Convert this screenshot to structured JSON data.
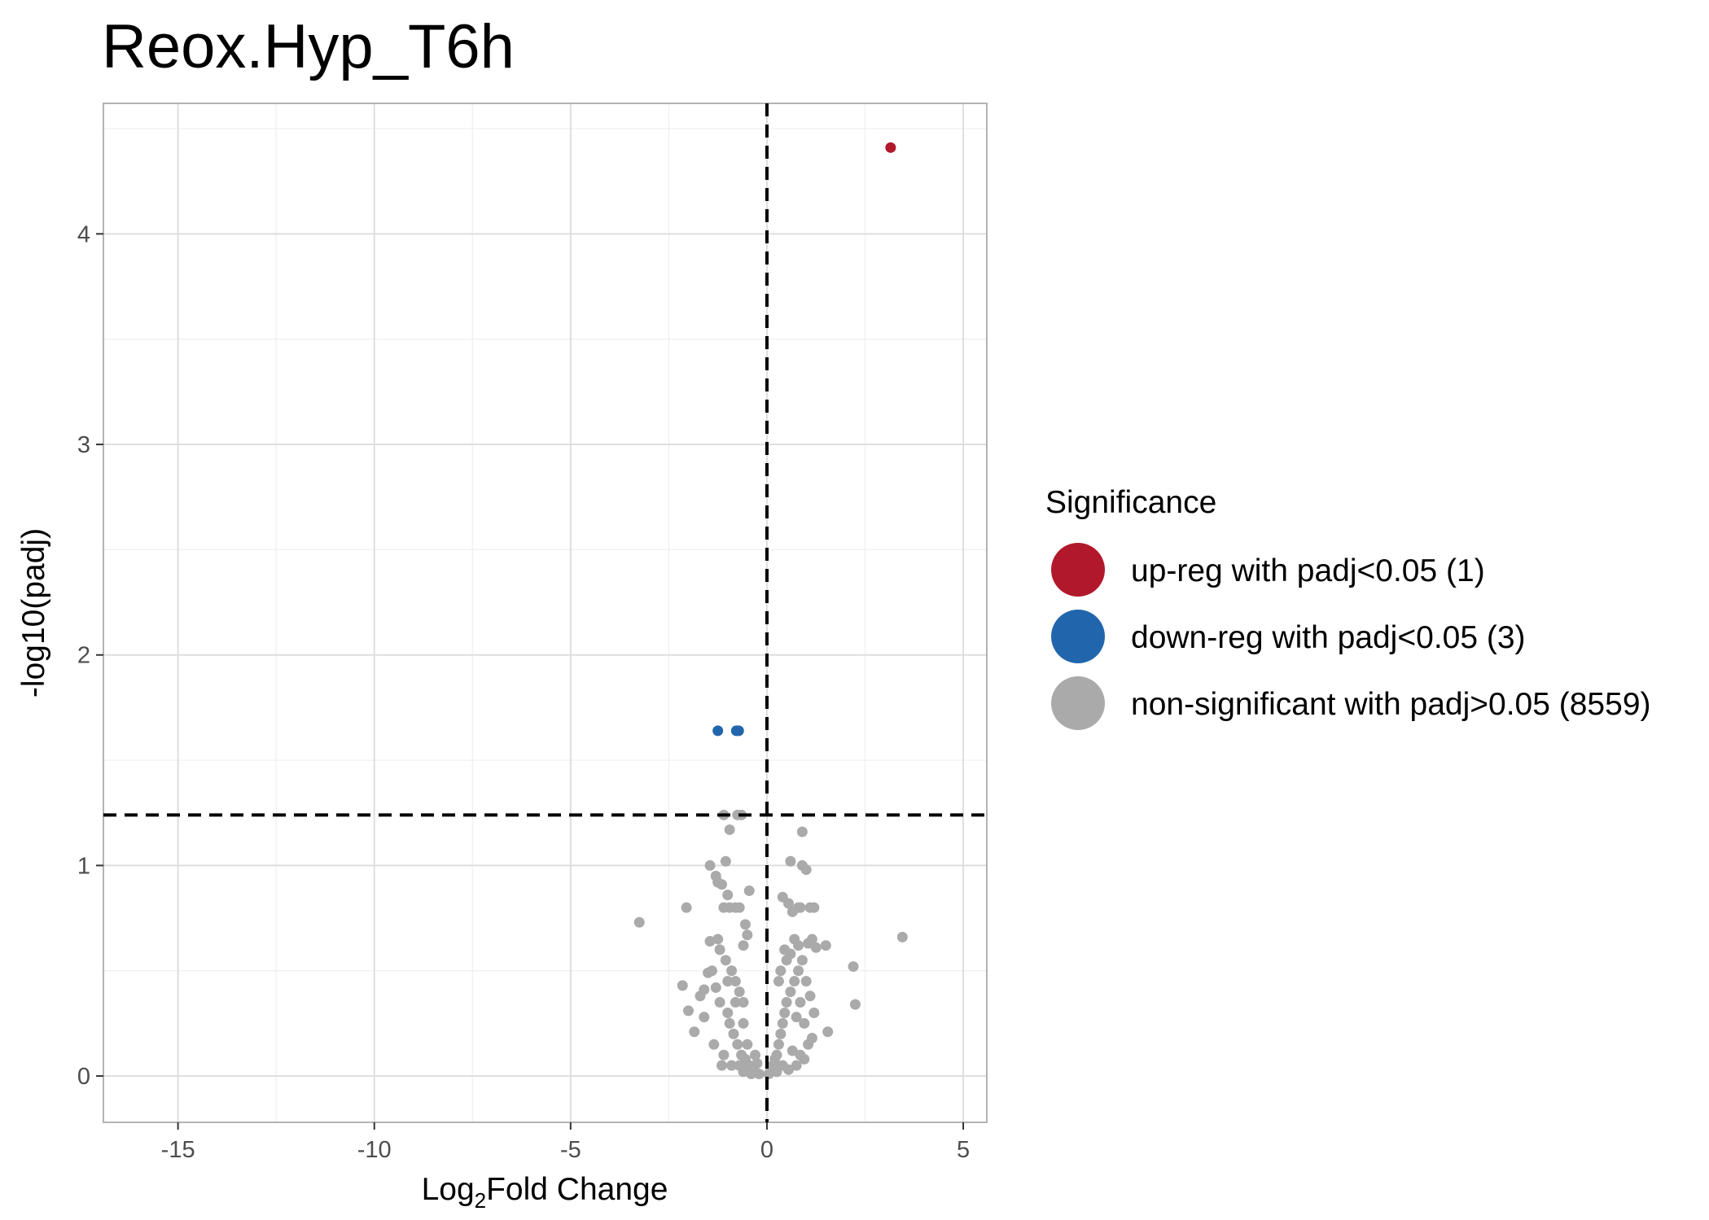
{
  "chart_data": {
    "type": "scatter",
    "title": "Reox.Hyp_T6h",
    "xlabel_main": "Log",
    "xlabel_sub": "2",
    "xlabel_rest": "Fold Change",
    "ylabel": "-log10(padj)",
    "xlim": [
      -16.9,
      5.6
    ],
    "ylim": [
      -0.22,
      4.62
    ],
    "x_ticks": [
      -15,
      -10,
      -5,
      0,
      5
    ],
    "x_tick_labels": [
      "-15",
      "-10",
      "-5",
      "0",
      "5"
    ],
    "y_ticks": [
      0,
      1,
      2,
      3,
      4
    ],
    "y_tick_labels": [
      "0",
      "1",
      "2",
      "3",
      "4"
    ],
    "grid": true,
    "threshold_lines": {
      "vertical_x": 0,
      "horizontal_y": 1.24
    },
    "legend": {
      "title": "Significance",
      "position": "right",
      "entries": [
        {
          "label": "up-reg with padj<0.05 (1)",
          "color": "#b2182b"
        },
        {
          "label": "down-reg with padj<0.05 (3)",
          "color": "#2166ac"
        },
        {
          "label": "non-significant with padj>0.05 (8559)",
          "color": "#aaaaaa"
        }
      ]
    },
    "series": [
      {
        "name": "up-reg with padj<0.05 (1)",
        "color": "#b2182b",
        "points": [
          [
            3.15,
            4.41
          ]
        ]
      },
      {
        "name": "down-reg with padj<0.05 (3)",
        "color": "#2166ac",
        "points": [
          [
            -1.25,
            1.64
          ],
          [
            -0.78,
            1.64
          ],
          [
            -0.72,
            1.64
          ]
        ]
      },
      {
        "name": "non-significant with padj>0.05 (8559)",
        "color": "#aaaaaa",
        "points": [
          [
            -3.25,
            0.73
          ],
          [
            -2.15,
            0.43
          ],
          [
            -2.0,
            0.31
          ],
          [
            -1.85,
            0.21
          ],
          [
            -2.05,
            0.8
          ],
          [
            -1.7,
            0.38
          ],
          [
            -1.6,
            0.41
          ],
          [
            -1.6,
            0.28
          ],
          [
            -1.5,
            0.49
          ],
          [
            -1.45,
            0.64
          ],
          [
            -1.45,
            1.0
          ],
          [
            -1.3,
            0.95
          ],
          [
            -1.25,
            0.92
          ],
          [
            -1.15,
            0.91
          ],
          [
            -1.0,
            0.86
          ],
          [
            -1.1,
            0.8
          ],
          [
            -0.95,
            0.8
          ],
          [
            -0.8,
            0.8
          ],
          [
            -0.7,
            0.8
          ],
          [
            -1.05,
            1.02
          ],
          [
            -1.1,
            1.24
          ],
          [
            -0.95,
            1.17
          ],
          [
            -0.75,
            1.24
          ],
          [
            -0.65,
            1.24
          ],
          [
            -1.2,
            0.6
          ],
          [
            -1.05,
            0.55
          ],
          [
            -0.9,
            0.5
          ],
          [
            -0.8,
            0.45
          ],
          [
            -0.7,
            0.4
          ],
          [
            -0.6,
            0.35
          ],
          [
            -1.3,
            0.42
          ],
          [
            -1.2,
            0.35
          ],
          [
            -1.0,
            0.3
          ],
          [
            -0.95,
            0.25
          ],
          [
            -0.85,
            0.2
          ],
          [
            -0.75,
            0.15
          ],
          [
            -0.65,
            0.1
          ],
          [
            -0.55,
            0.08
          ],
          [
            -0.45,
            0.05
          ],
          [
            -0.35,
            0.03
          ],
          [
            -1.1,
            0.1
          ],
          [
            -0.9,
            0.05
          ],
          [
            -0.6,
            0.02
          ],
          [
            -0.4,
            0.01
          ],
          [
            -0.2,
            0.01
          ],
          [
            -1.0,
            0.45
          ],
          [
            -0.8,
            0.35
          ],
          [
            -0.6,
            0.25
          ],
          [
            -0.5,
            0.15
          ],
          [
            -0.3,
            0.1
          ],
          [
            -0.55,
            0.72
          ],
          [
            -0.5,
            0.67
          ],
          [
            -0.45,
            0.88
          ],
          [
            -0.6,
            0.62
          ],
          [
            -1.25,
            0.65
          ],
          [
            -1.4,
            0.5
          ],
          [
            -1.35,
            0.15
          ],
          [
            -1.15,
            0.05
          ],
          [
            -0.7,
            0.05
          ],
          [
            -0.25,
            0.06
          ],
          [
            0.4,
            0.85
          ],
          [
            0.55,
            0.82
          ],
          [
            0.65,
            0.78
          ],
          [
            0.8,
            0.8
          ],
          [
            0.85,
            0.8
          ],
          [
            0.9,
            1.0
          ],
          [
            1.0,
            0.98
          ],
          [
            1.1,
            0.8
          ],
          [
            1.2,
            0.8
          ],
          [
            0.6,
            1.02
          ],
          [
            0.9,
            1.16
          ],
          [
            1.05,
            0.63
          ],
          [
            1.15,
            0.65
          ],
          [
            1.25,
            0.61
          ],
          [
            1.5,
            0.62
          ],
          [
            2.2,
            0.52
          ],
          [
            2.25,
            0.34
          ],
          [
            3.45,
            0.66
          ],
          [
            1.55,
            0.21
          ],
          [
            1.2,
            0.3
          ],
          [
            1.0,
            0.45
          ],
          [
            0.9,
            0.55
          ],
          [
            0.8,
            0.5
          ],
          [
            0.7,
            0.45
          ],
          [
            0.6,
            0.4
          ],
          [
            0.5,
            0.35
          ],
          [
            0.45,
            0.3
          ],
          [
            0.4,
            0.25
          ],
          [
            0.35,
            0.2
          ],
          [
            0.3,
            0.15
          ],
          [
            0.25,
            0.1
          ],
          [
            0.2,
            0.08
          ],
          [
            0.15,
            0.05
          ],
          [
            0.1,
            0.03
          ],
          [
            0.05,
            0.01
          ],
          [
            0.95,
            0.25
          ],
          [
            1.05,
            0.15
          ],
          [
            0.85,
            0.1
          ],
          [
            0.75,
            0.05
          ],
          [
            0.55,
            0.03
          ],
          [
            0.7,
            0.65
          ],
          [
            0.8,
            0.62
          ],
          [
            0.6,
            0.58
          ],
          [
            0.5,
            0.55
          ],
          [
            0.45,
            0.6
          ],
          [
            1.1,
            0.38
          ],
          [
            1.15,
            0.18
          ],
          [
            0.95,
            0.08
          ],
          [
            0.65,
            0.12
          ],
          [
            0.4,
            0.05
          ],
          [
            0.25,
            0.02
          ],
          [
            0.35,
            0.5
          ],
          [
            0.3,
            0.45
          ],
          [
            0.85,
            0.35
          ],
          [
            0.75,
            0.28
          ]
        ]
      }
    ]
  }
}
